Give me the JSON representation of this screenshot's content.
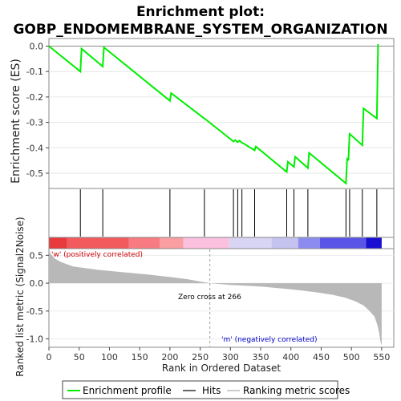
{
  "title_line1": "Enrichment plot:",
  "title_line2": "GOBP_ENDOMEMBRANE_SYSTEM_ORGANIZATION",
  "colors": {
    "es_line": "#00ee00",
    "hit": "#000000",
    "metric_fill": "#b8b8b8",
    "pos_text": "#cc0000",
    "neg_text": "#0000cc",
    "zero_line": "#999999"
  },
  "chart_data": {
    "type": "line",
    "n_genes": 550,
    "xlim": [
      0,
      570
    ],
    "xticks": [
      0,
      50,
      100,
      150,
      200,
      250,
      300,
      350,
      400,
      450,
      500,
      550
    ],
    "xlabel": "Rank in Ordered Dataset",
    "es_ylabel": "Enrichment score (ES)",
    "es_ylim": [
      -0.56,
      0.03
    ],
    "es_yticks": [
      "0.0",
      "-0.1",
      "-0.2",
      "-0.3",
      "-0.4",
      "-0.5"
    ],
    "es_ytick_values": [
      0.0,
      -0.1,
      -0.2,
      -0.3,
      -0.4,
      -0.5
    ],
    "es_curve": {
      "x": [
        0,
        52,
        54,
        89,
        91,
        200,
        202,
        257,
        260,
        305,
        308,
        312,
        315,
        319,
        323,
        340,
        342,
        393,
        395,
        405,
        407,
        428,
        430,
        491,
        493,
        495,
        497,
        518,
        520,
        542,
        544
      ],
      "y": [
        0.0,
        -0.1,
        -0.01,
        -0.08,
        -0.005,
        -0.215,
        -0.185,
        -0.285,
        -0.29,
        -0.375,
        -0.37,
        -0.378,
        -0.372,
        -0.38,
        -0.385,
        -0.41,
        -0.395,
        -0.495,
        -0.455,
        -0.475,
        -0.435,
        -0.48,
        -0.42,
        -0.54,
        -0.44,
        -0.45,
        -0.345,
        -0.39,
        -0.245,
        -0.285,
        0.008
      ]
    },
    "hits": [
      52,
      89,
      200,
      257,
      305,
      312,
      319,
      340,
      393,
      405,
      428,
      491,
      497,
      518,
      542
    ],
    "metric_ylabel": "Ranked list metric (Signal2Noise)",
    "metric_ylim": [
      -1.15,
      0.62
    ],
    "metric_yticks": [
      "0.5",
      "0.0",
      "-0.5",
      "-1.0"
    ],
    "metric_ytick_values": [
      0.5,
      0.0,
      -0.5,
      -1.0
    ],
    "metric_profile": {
      "rank": [
        0,
        3,
        10,
        20,
        40,
        80,
        120,
        160,
        200,
        230,
        255,
        266,
        300,
        350,
        400,
        440,
        470,
        490,
        505,
        520,
        530,
        538,
        543,
        546,
        548,
        550
      ],
      "value": [
        0.62,
        0.52,
        0.44,
        0.38,
        0.3,
        0.24,
        0.2,
        0.16,
        0.11,
        0.07,
        0.02,
        0.0,
        -0.03,
        -0.06,
        -0.11,
        -0.16,
        -0.21,
        -0.26,
        -0.32,
        -0.4,
        -0.5,
        -0.6,
        -0.75,
        -0.9,
        -1.05,
        -1.12
      ]
    },
    "zero_cross_rank": 266,
    "zero_cross_label": "Zero cross at 266",
    "pos_label": "'w' (positively correlated)",
    "neg_label": "'m' (negatively correlated)",
    "heat_bands": [
      {
        "from": 0,
        "to": 30,
        "color": "#e8393b"
      },
      {
        "from": 30,
        "to": 132,
        "color": "#f25a5e"
      },
      {
        "from": 132,
        "to": 183,
        "color": "#f77b80"
      },
      {
        "from": 183,
        "to": 222,
        "color": "#fa9ea2"
      },
      {
        "from": 222,
        "to": 298,
        "color": "#fcc0df"
      },
      {
        "from": 298,
        "to": 368,
        "color": "#d7d4f4"
      },
      {
        "from": 368,
        "to": 412,
        "color": "#c4c3f0"
      },
      {
        "from": 412,
        "to": 448,
        "color": "#8c8cf0"
      },
      {
        "from": 448,
        "to": 524,
        "color": "#5a55e6"
      },
      {
        "from": 524,
        "to": 550,
        "color": "#1a0fd0"
      }
    ],
    "legend": [
      "Enrichment profile",
      "Hits",
      "Ranking metric scores"
    ]
  }
}
